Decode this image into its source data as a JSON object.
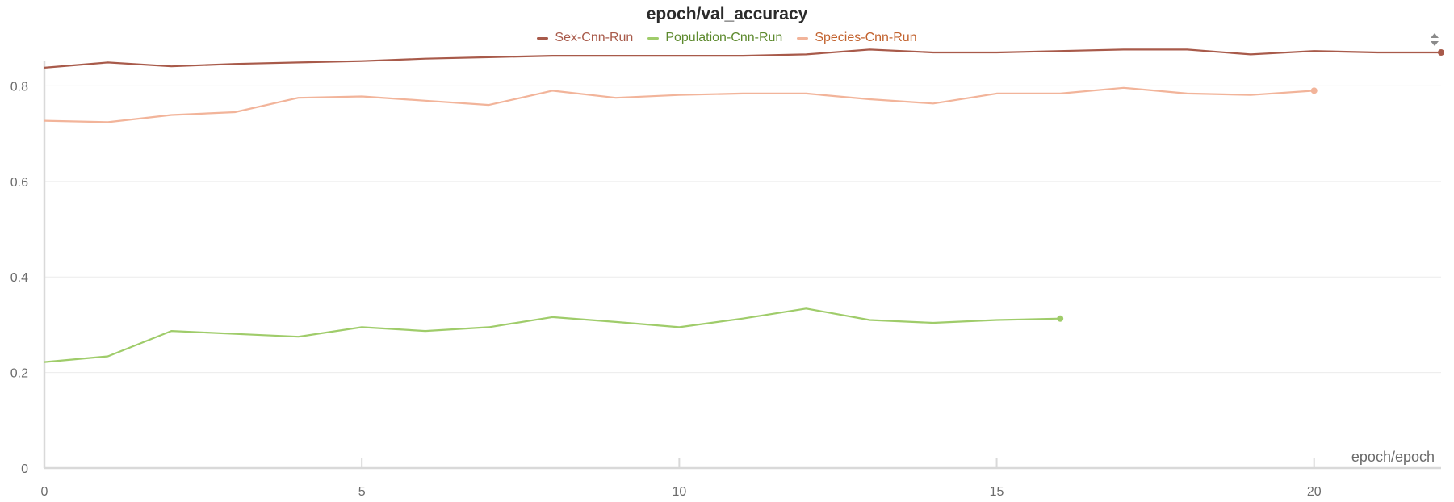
{
  "chart_data": {
    "type": "line",
    "title": "epoch/val_accuracy",
    "xlabel": "epoch/epoch",
    "ylabel": "",
    "xlim": [
      0,
      22
    ],
    "ylim": [
      0,
      0.87
    ],
    "x_ticks": [
      0,
      5,
      10,
      15,
      20
    ],
    "y_ticks": [
      0,
      0.2,
      0.4,
      0.6,
      0.8
    ],
    "y_tick_labels": [
      "0",
      "0.2",
      "0.4",
      "0.6",
      "0.8"
    ],
    "grid": true,
    "legend": "top-center",
    "series": [
      {
        "name": "Sex-Cnn-Run",
        "color": "#a85a4a",
        "label_color": "#a85a4a",
        "x": [
          0,
          1,
          2,
          3,
          4,
          5,
          6,
          7,
          8,
          9,
          10,
          11,
          12,
          13,
          14,
          15,
          16,
          17,
          18,
          19,
          20,
          21,
          22
        ],
        "values": [
          0.838,
          0.849,
          0.841,
          0.846,
          0.849,
          0.852,
          0.857,
          0.86,
          0.863,
          0.863,
          0.863,
          0.863,
          0.866,
          0.876,
          0.87,
          0.87,
          0.873,
          0.876,
          0.876,
          0.866,
          0.873,
          0.87,
          0.87
        ]
      },
      {
        "name": "Population-Cnn-Run",
        "color": "#9fcc6a",
        "label_color": "#5d8a2e",
        "x": [
          0,
          1,
          2,
          3,
          4,
          5,
          6,
          7,
          8,
          9,
          10,
          11,
          12,
          13,
          14,
          15,
          16
        ],
        "values": [
          0.222,
          0.234,
          0.287,
          0.281,
          0.275,
          0.295,
          0.287,
          0.295,
          0.316,
          0.306,
          0.295,
          0.313,
          0.334,
          0.31,
          0.304,
          0.31,
          0.313
        ]
      },
      {
        "name": "Species-Cnn-Run",
        "color": "#f2b49a",
        "label_color": "#c2622e",
        "x": [
          0,
          1,
          2,
          3,
          4,
          5,
          6,
          7,
          8,
          9,
          10,
          11,
          12,
          13,
          14,
          15,
          16,
          17,
          18,
          19,
          20
        ],
        "values": [
          0.727,
          0.724,
          0.739,
          0.745,
          0.775,
          0.778,
          0.769,
          0.76,
          0.79,
          0.775,
          0.781,
          0.784,
          0.784,
          0.772,
          0.763,
          0.784,
          0.784,
          0.796,
          0.784,
          0.781,
          0.79
        ]
      }
    ]
  },
  "icons": {
    "sort": "sort-updown-icon"
  }
}
